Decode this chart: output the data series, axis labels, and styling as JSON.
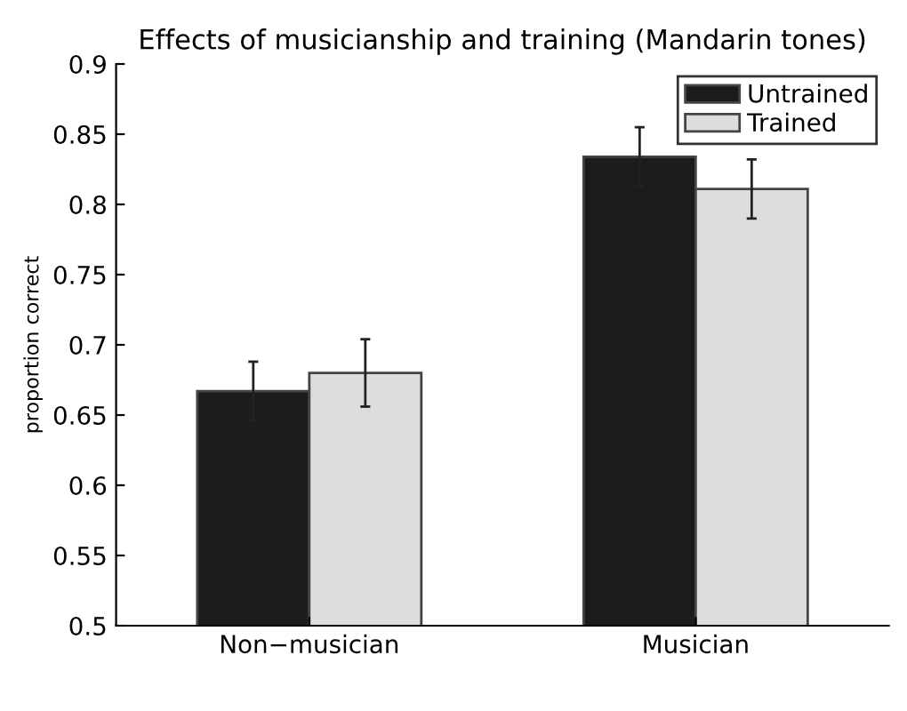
{
  "chart_data": {
    "type": "bar",
    "title": "Effects of musicianship and training (Mandarin tones)",
    "ylabel": "proportion correct",
    "categories": [
      "Non−musician",
      "Musician"
    ],
    "series": [
      {
        "name": "Untrained",
        "color": "#1c1c1c",
        "values": [
          0.667,
          0.834
        ],
        "errors": [
          0.021,
          0.021
        ]
      },
      {
        "name": "Trained",
        "color": "#dddddd",
        "values": [
          0.68,
          0.811
        ],
        "errors": [
          0.024,
          0.021
        ]
      }
    ],
    "ylim": [
      0.5,
      0.9
    ],
    "yticks": [
      0.5,
      0.55,
      0.6,
      0.65,
      0.7,
      0.75,
      0.8,
      0.85,
      0.9
    ],
    "grid": false,
    "legend": "top right"
  }
}
